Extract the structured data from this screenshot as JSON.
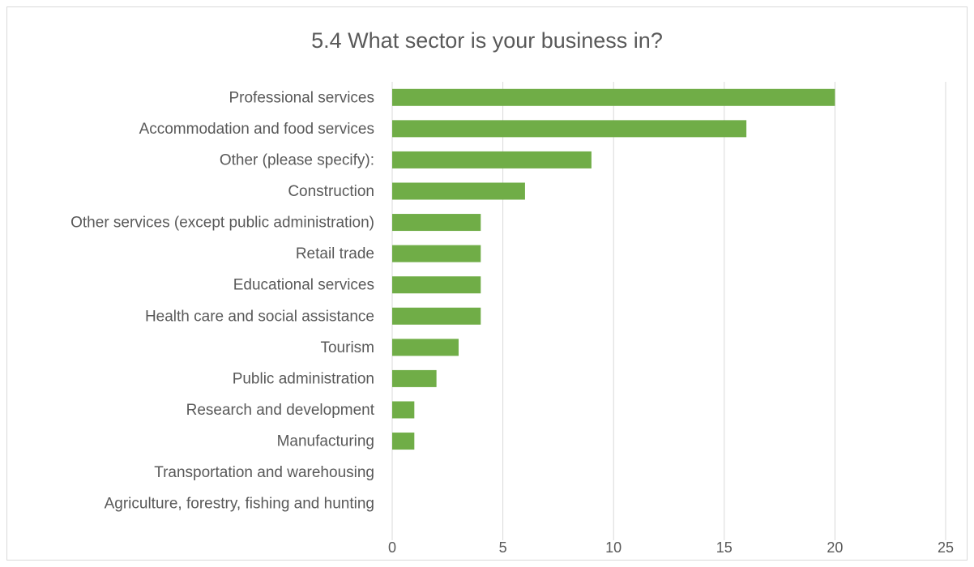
{
  "chart_data": {
    "type": "bar",
    "orientation": "horizontal",
    "title": "5.4 What sector is your business in?",
    "categories": [
      "Professional services",
      "Accommodation and food services",
      "Other (please specify):",
      "Construction",
      "Other services (except public administration)",
      "Retail trade",
      "Educational services",
      "Health care and social assistance",
      "Tourism",
      "Public administration",
      "Research and development",
      "Manufacturing",
      "Transportation and warehousing",
      "Agriculture, forestry, fishing and hunting"
    ],
    "values": [
      20,
      16,
      9,
      6,
      4,
      4,
      4,
      4,
      3,
      2,
      1,
      1,
      0,
      0
    ],
    "xlim": [
      0,
      25
    ],
    "x_ticks": [
      0,
      5,
      10,
      15,
      20,
      25
    ],
    "grid": "vertical",
    "bar_color": "#70ad47",
    "xlabel": "",
    "ylabel": ""
  }
}
